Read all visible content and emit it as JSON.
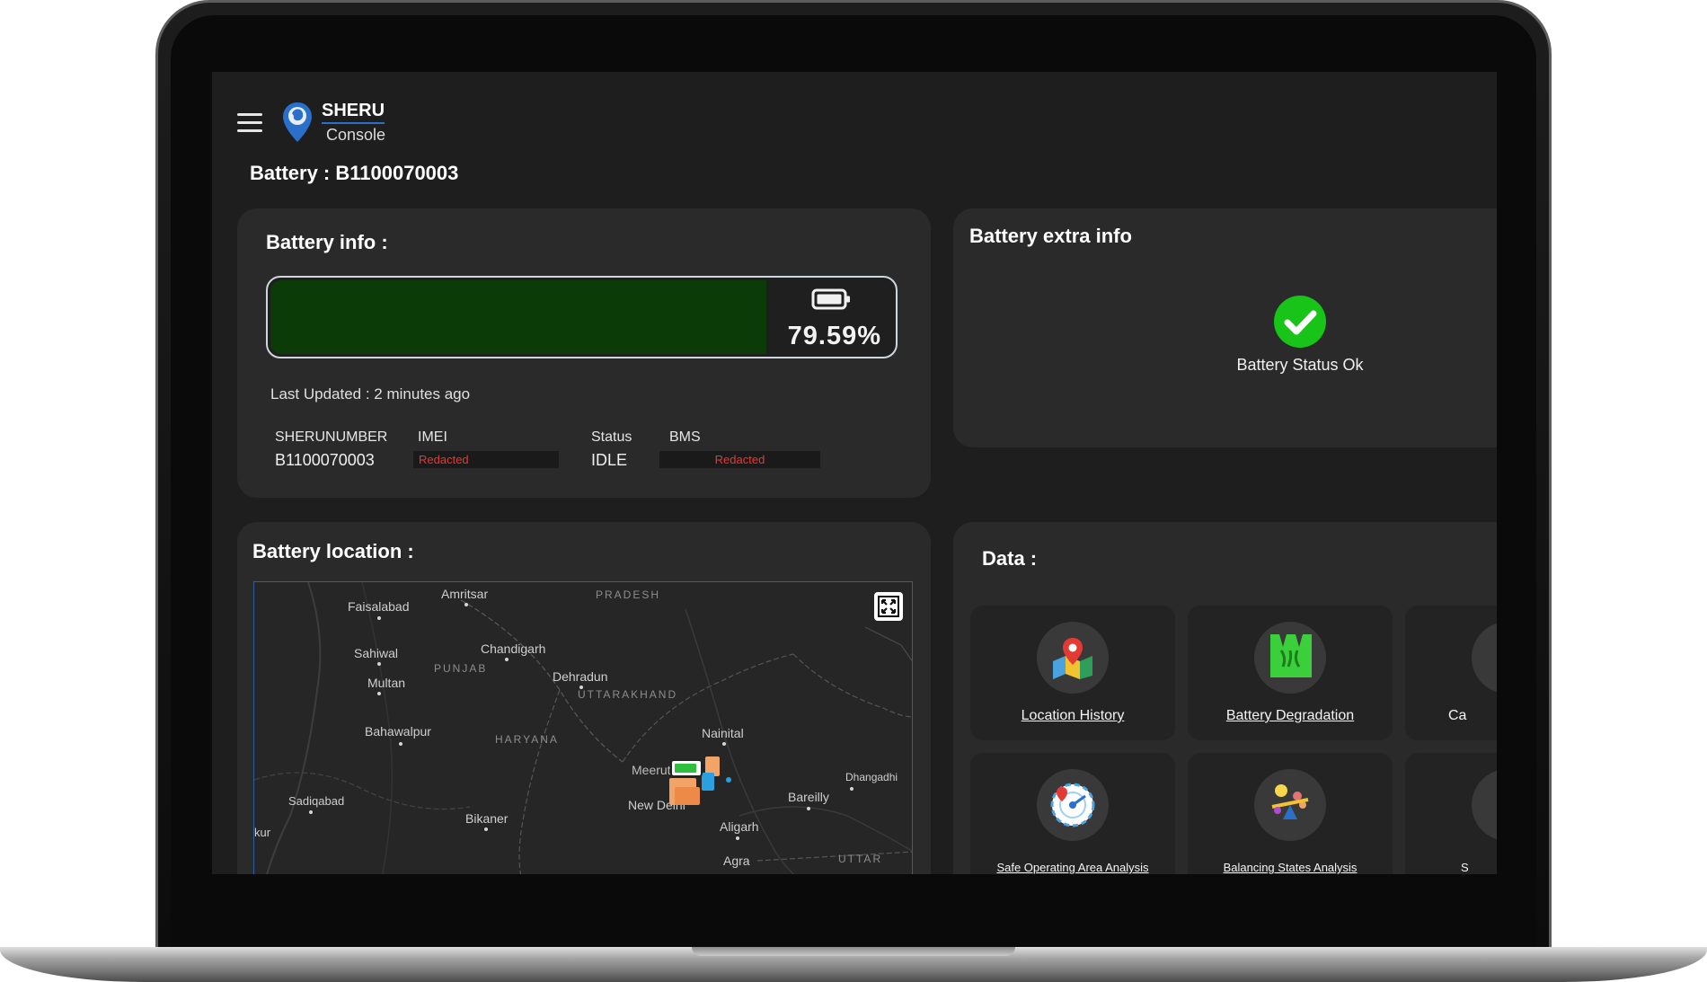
{
  "header": {
    "brand_title": "SHERU",
    "brand_subtitle": "Console",
    "page_title": "Battery : B1100070003"
  },
  "battery_info": {
    "title": "Battery info :",
    "charge_percent": 79.59,
    "charge_label": "79.59%",
    "last_updated": "Last Updated : 2 minutes ago",
    "columns": {
      "sherunumber_label": "SHERUNUMBER",
      "sherunumber_value": "B1100070003",
      "imei_label": "IMEI",
      "imei_value": "Redacted",
      "status_label": "Status",
      "status_value": "IDLE",
      "bms_label": "BMS",
      "bms_value": "Redacted"
    }
  },
  "battery_extra_info": {
    "title": "Battery extra info",
    "status_text": "Battery Status Ok"
  },
  "battery_location": {
    "title": "Battery location :",
    "places": {
      "amritsar": "Amritsar",
      "faisalabad": "Faisalabad",
      "sahiwal": "Sahiwal",
      "multan": "Multan",
      "bahawalpur": "Bahawalpur",
      "sadiqabad": "Sadiqabad",
      "bikaner": "Bikaner",
      "chandigarh": "Chandigarh",
      "dehradun": "Dehradun",
      "nainital": "Nainital",
      "meerut": "Meerut",
      "dhangadhi": "Dhangadhi",
      "bareilly": "Bareilly",
      "new_delhi": "New Delhi",
      "aligarh": "Aligarh",
      "agra": "Agra",
      "kur": "kur"
    },
    "regions": {
      "punjab": "PUNJAB",
      "haryana": "HARYANA",
      "uttarakhand": "UTTARAKHAND",
      "pradesh": "PRADESH",
      "uttar": "UTTAR"
    }
  },
  "data_section": {
    "title": "Data :",
    "tiles": [
      {
        "label": "Location History",
        "icon": "map-pin-icon"
      },
      {
        "label": "Battery Degradation",
        "icon": "degradation-icon"
      },
      {
        "label": "Ca",
        "icon": "cycle-icon"
      },
      {
        "label": "Safe Operating Area Analysis",
        "icon": "soa-icon"
      },
      {
        "label": "Balancing States Analysis",
        "icon": "balance-icon"
      },
      {
        "label": "S",
        "icon": "unknown-icon"
      }
    ]
  },
  "colors": {
    "background": "#1e1e1e",
    "card": "#2a2a2a",
    "battery_fill": "#0b3b06",
    "ok_green": "#18c418",
    "redacted_text": "#e53935"
  }
}
